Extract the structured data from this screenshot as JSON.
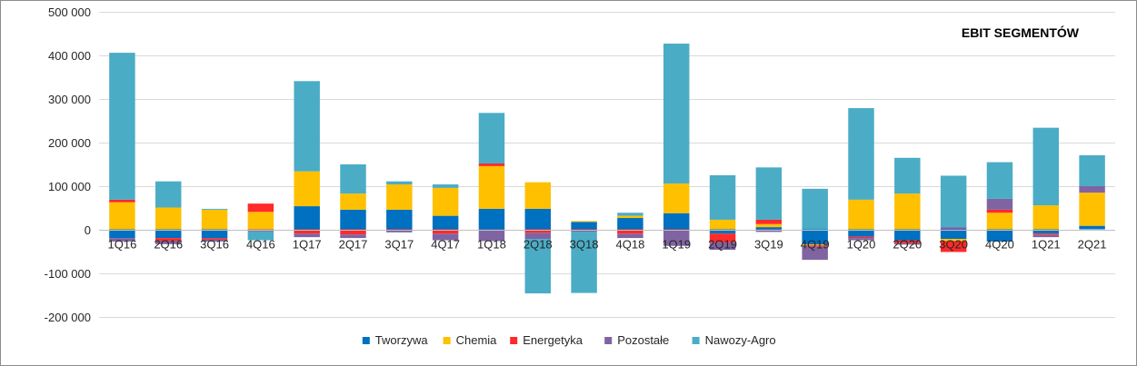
{
  "chart_data": {
    "type": "bar",
    "stacked": true,
    "title": "EBIT SEGMENTÓW",
    "xlabel": "",
    "ylabel": "",
    "ylim": [
      -200000,
      500000
    ],
    "yticks": [
      -200000,
      -100000,
      0,
      100000,
      200000,
      300000,
      400000,
      500000
    ],
    "ytick_labels": [
      "-200 000",
      "-100 000",
      "0",
      "100 000",
      "200 000",
      "300 000",
      "400 000",
      "500 000"
    ],
    "grid": "horizontal",
    "legend_position": "bottom",
    "categories": [
      "1Q16",
      "2Q16",
      "3Q16",
      "4Q16",
      "1Q17",
      "2Q17",
      "3Q17",
      "4Q17",
      "1Q18",
      "2Q18",
      "3Q18",
      "4Q18",
      "1Q19",
      "2Q19",
      "3Q19",
      "4Q19",
      "1Q20",
      "2Q20",
      "3Q20",
      "4Q20",
      "1Q21",
      "2Q21"
    ],
    "series": [
      {
        "name": "Tworzywa",
        "color": "#0070c0",
        "values": [
          -20000,
          -20000,
          -20000,
          0,
          53000,
          45000,
          45000,
          31000,
          47000,
          47000,
          17000,
          26000,
          37000,
          -10000,
          5000,
          -35000,
          -17000,
          -25000,
          -22000,
          -28000,
          -10000,
          8000
        ]
      },
      {
        "name": "Chemia",
        "color": "#ffc000",
        "values": [
          62000,
          50000,
          45000,
          40000,
          80000,
          37000,
          58000,
          64000,
          98000,
          61000,
          2000,
          5000,
          68000,
          22000,
          7000,
          -2000,
          68000,
          82000,
          -5000,
          38000,
          55000,
          76000
        ]
      },
      {
        "name": "Energetyka",
        "color": "#ff2a2a",
        "values": [
          6000,
          -6000,
          -3000,
          19000,
          -10000,
          -12000,
          -3000,
          -10000,
          6000,
          -8000,
          -3000,
          -10000,
          -3000,
          -20000,
          10000,
          -3000,
          -3000,
          -7000,
          -25000,
          7000,
          -3000,
          0
        ]
      },
      {
        "name": "Pozostałe",
        "color": "#8064a2",
        "values": [
          -8000,
          -8000,
          -5000,
          -5000,
          -8000,
          -8000,
          -4000,
          -15000,
          -27000,
          -14000,
          -3000,
          -10000,
          -35000,
          -17000,
          -6000,
          -30000,
          -5000,
          -3000,
          5000,
          25000,
          -5000,
          15000
        ]
      },
      {
        "name": "Nawozy-Agro",
        "color": "#4bacc6",
        "values": [
          337000,
          60000,
          2000,
          -20000,
          207000,
          67000,
          7000,
          8000,
          116000,
          -125000,
          -140000,
          7000,
          321000,
          102000,
          120000,
          93000,
          210000,
          82000,
          118000,
          84000,
          178000,
          71000
        ]
      }
    ]
  }
}
